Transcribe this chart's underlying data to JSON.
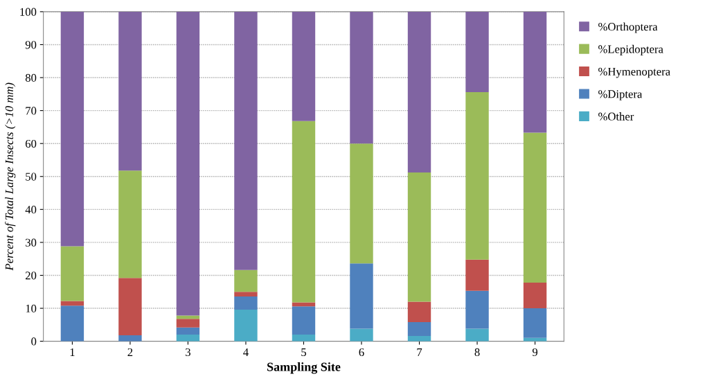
{
  "chart_data": {
    "type": "bar",
    "stacked": true,
    "xlabel": "Sampling Site",
    "ylabel": "Percent of Total Large Insects (>10 mm)",
    "categories": [
      "1",
      "2",
      "3",
      "4",
      "5",
      "6",
      "7",
      "8",
      "9"
    ],
    "series": [
      {
        "name": "%Other",
        "color": "#4bacc6",
        "values": [
          0,
          0,
          2.0,
          9.6,
          2.0,
          3.8,
          1.6,
          3.8,
          1.0
        ]
      },
      {
        "name": "%Diptera",
        "color": "#4f81bd",
        "values": [
          10.8,
          1.8,
          2.2,
          4.0,
          8.6,
          19.8,
          4.2,
          11.5,
          9.0
        ]
      },
      {
        "name": "%Hymenoptera",
        "color": "#c0504d",
        "values": [
          1.4,
          17.4,
          2.6,
          1.4,
          1.2,
          0,
          6.2,
          9.5,
          7.8
        ]
      },
      {
        "name": "%Lepidoptera",
        "color": "#9bbb59",
        "values": [
          16.6,
          32.6,
          1.0,
          6.6,
          55.0,
          36.4,
          39.2,
          50.8,
          45.5
        ]
      },
      {
        "name": "%Orthoptera",
        "color": "#8064a2",
        "values": [
          71.2,
          48.2,
          92.2,
          78.4,
          33.2,
          40.0,
          48.8,
          24.4,
          36.7
        ]
      }
    ],
    "ylim": [
      0,
      100
    ],
    "yticks": [
      0,
      10,
      20,
      30,
      40,
      50,
      60,
      70,
      80,
      90,
      100
    ],
    "grid": "y",
    "legend": "right"
  }
}
